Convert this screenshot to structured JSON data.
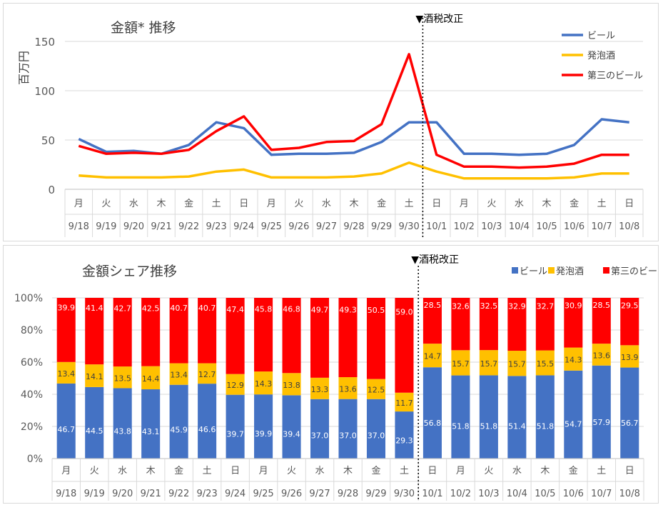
{
  "colors": {
    "beer": "#4472C4",
    "happoshu": "#FFC000",
    "third_beer": "#FF0000"
  },
  "chart_data": [
    {
      "type": "line",
      "title": "金額* 推移",
      "ylabel": "百万円",
      "ylim": [
        0,
        150
      ],
      "yticks": [
        0,
        50,
        100,
        150
      ],
      "weekdays": [
        "月",
        "火",
        "水",
        "木",
        "金",
        "土",
        "日",
        "月",
        "火",
        "水",
        "木",
        "金",
        "土",
        "日",
        "月",
        "火",
        "水",
        "木",
        "金",
        "土",
        "日"
      ],
      "dates": [
        "9/18",
        "9/19",
        "9/20",
        "9/21",
        "9/22",
        "9/23",
        "9/24",
        "9/25",
        "9/26",
        "9/27",
        "9/28",
        "9/29",
        "9/30",
        "10/1",
        "10/2",
        "10/3",
        "10/4",
        "10/5",
        "10/6",
        "10/7",
        "10/8"
      ],
      "annotation": "▼酒税改正",
      "annotation_after": "9/30",
      "legend_position": "top-right",
      "grid": true,
      "series": [
        {
          "name": "ビール",
          "color_key": "beer",
          "values": [
            51,
            38,
            39,
            36,
            45,
            68,
            62,
            35,
            36,
            36,
            37,
            48,
            68,
            68,
            36,
            36,
            35,
            36,
            45,
            71,
            68
          ]
        },
        {
          "name": "発泡酒",
          "color_key": "happoshu",
          "values": [
            14,
            12,
            12,
            12,
            13,
            18,
            20,
            12,
            12,
            12,
            13,
            16,
            27,
            18,
            11,
            11,
            11,
            11,
            12,
            16,
            16
          ]
        },
        {
          "name": "第三のビール",
          "color_key": "third_beer",
          "values": [
            44,
            36,
            37,
            36,
            40,
            59,
            74,
            40,
            42,
            48,
            49,
            66,
            137,
            35,
            23,
            23,
            22,
            23,
            26,
            35,
            35
          ]
        }
      ]
    },
    {
      "type": "bar",
      "stacked": true,
      "title": "金額シェア推移",
      "ylim": [
        0,
        100
      ],
      "yticks": [
        "0%",
        "20%",
        "40%",
        "60%",
        "80%",
        "100%"
      ],
      "weekdays": [
        "月",
        "火",
        "水",
        "木",
        "金",
        "土",
        "日",
        "月",
        "火",
        "水",
        "木",
        "金",
        "土",
        "日",
        "月",
        "火",
        "水",
        "木",
        "金",
        "土",
        "日"
      ],
      "dates": [
        "9/18",
        "9/19",
        "9/20",
        "9/21",
        "9/22",
        "9/23",
        "9/24",
        "9/25",
        "9/26",
        "9/27",
        "9/28",
        "9/29",
        "9/30",
        "10/1",
        "10/2",
        "10/3",
        "10/4",
        "10/5",
        "10/6",
        "10/7",
        "10/8"
      ],
      "annotation": "▼酒税改正",
      "annotation_after": "9/30",
      "legend_position": "top-right",
      "grid": true,
      "series": [
        {
          "name": "ビール",
          "color_key": "beer",
          "values": [
            "46.7",
            "44.5",
            "43.8",
            "43.1",
            "45.9",
            "46.6",
            "39.7",
            "39.9",
            "39.4",
            "37.0",
            "37.0",
            "37.0",
            "29.3",
            "56.8",
            "51.8",
            "51.8",
            "51.4",
            "51.8",
            "54.7",
            "57.9",
            "56.7"
          ]
        },
        {
          "name": "発泡酒",
          "color_key": "happoshu",
          "values": [
            "13.4",
            "14.1",
            "13.5",
            "14.4",
            "13.4",
            "12.7",
            "12.9",
            "14.3",
            "13.8",
            "13.3",
            "13.6",
            "12.5",
            "11.7",
            "14.7",
            "15.7",
            "15.7",
            "15.7",
            "15.5",
            "14.3",
            "13.6",
            "13.9"
          ]
        },
        {
          "name": "第三のビール",
          "color_key": "third_beer",
          "values": [
            "39.9",
            "41.4",
            "42.7",
            "42.5",
            "40.7",
            "40.7",
            "47.4",
            "45.8",
            "46.8",
            "49.7",
            "49.3",
            "50.5",
            "59.0",
            "28.5",
            "32.6",
            "32.5",
            "32.9",
            "32.7",
            "30.9",
            "28.5",
            "29.5"
          ]
        }
      ]
    }
  ]
}
